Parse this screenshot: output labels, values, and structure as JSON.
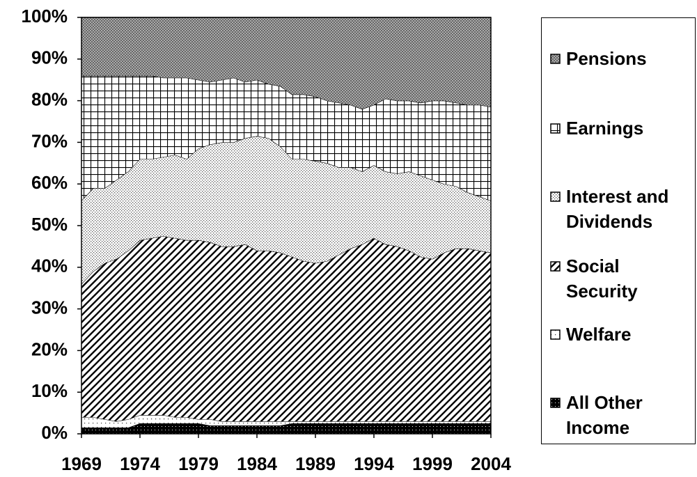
{
  "chart_data": {
    "type": "stacked-area-percent",
    "x": [
      1969,
      1970,
      1971,
      1972,
      1973,
      1974,
      1975,
      1976,
      1977,
      1978,
      1979,
      1980,
      1981,
      1982,
      1983,
      1984,
      1985,
      1986,
      1987,
      1988,
      1989,
      1990,
      1991,
      1992,
      1993,
      1994,
      1995,
      1996,
      1997,
      1998,
      1999,
      2000,
      2001,
      2002,
      2003,
      2004
    ],
    "xlim": [
      1969,
      2004
    ],
    "xticks": [
      1969,
      1974,
      1979,
      1984,
      1989,
      1994,
      1999,
      2004
    ],
    "ylim": [
      0,
      100
    ],
    "yticks": [
      {
        "value": 0,
        "label": "0%"
      },
      {
        "value": 10,
        "label": "10%"
      },
      {
        "value": 20,
        "label": "20%"
      },
      {
        "value": 30,
        "label": "30%"
      },
      {
        "value": 40,
        "label": "40%"
      },
      {
        "value": 50,
        "label": "50%"
      },
      {
        "value": 60,
        "label": "60%"
      },
      {
        "value": 70,
        "label": "70%"
      },
      {
        "value": 80,
        "label": "80%"
      },
      {
        "value": 90,
        "label": "90%"
      },
      {
        "value": 100,
        "label": "100%"
      }
    ],
    "series": [
      {
        "name": "All Other Income",
        "pattern": "black-dots",
        "values": [
          1.5,
          1.5,
          1.5,
          1.5,
          1.5,
          2.5,
          2.5,
          2.5,
          2.5,
          2.5,
          2.5,
          2,
          2,
          2,
          2,
          2,
          2,
          2,
          2.5,
          2.5,
          2.5,
          2.5,
          2.5,
          2.5,
          2.5,
          2.5,
          2.5,
          2.5,
          2.5,
          2.5,
          2.5,
          2.5,
          2.5,
          2.5,
          2.5,
          2.5
        ]
      },
      {
        "name": "Welfare",
        "pattern": "sparse-dots",
        "values": [
          2.5,
          2.5,
          2,
          1.5,
          2,
          2,
          2,
          2,
          1.5,
          1.5,
          1,
          1.5,
          1,
          1,
          1,
          1,
          1,
          1,
          0.5,
          0.5,
          0.5,
          0.5,
          0.5,
          0.5,
          0.5,
          0.5,
          0.5,
          0.5,
          0.5,
          0.5,
          0.5,
          0.5,
          0.5,
          0.5,
          0.5,
          0.5
        ]
      },
      {
        "name": "Social Security",
        "pattern": "stripes",
        "values": [
          32,
          35,
          37.5,
          39,
          40.5,
          42,
          42.5,
          43,
          43,
          42.5,
          43,
          42.5,
          42,
          42,
          42.5,
          41,
          41,
          40.5,
          39.5,
          38.5,
          38,
          38.5,
          40,
          41.5,
          42.5,
          44,
          42.5,
          42,
          41,
          39.5,
          39,
          40.5,
          41.5,
          41.5,
          41,
          40.5
        ]
      },
      {
        "name": "Interest and Dividends",
        "pattern": "dots",
        "values": [
          20,
          20,
          18,
          19,
          19,
          19.5,
          19,
          19,
          20,
          19.5,
          22,
          23.5,
          25,
          25,
          25.5,
          27.5,
          27,
          25.5,
          23.5,
          24.5,
          24.5,
          23.5,
          21,
          19.5,
          17.5,
          17.5,
          17.5,
          17.5,
          19,
          19.5,
          19,
          16.5,
          15,
          13.5,
          13,
          12.5
        ]
      },
      {
        "name": "Earnings",
        "pattern": "grid",
        "values": [
          30,
          27,
          27,
          25,
          23,
          20,
          20,
          19,
          18.5,
          19.5,
          16.5,
          15,
          15,
          15.5,
          13.5,
          13.5,
          13,
          14.5,
          15.5,
          15.5,
          15.5,
          15,
          15.5,
          15,
          15,
          14.5,
          17.5,
          17.5,
          17,
          17.5,
          19,
          20,
          20,
          21,
          22,
          22.5
        ]
      },
      {
        "name": "Pensions",
        "pattern": "crosshatch",
        "values": [
          14,
          14,
          14,
          14,
          14,
          14,
          14,
          14.5,
          14.5,
          14.5,
          15,
          15.5,
          15,
          14.5,
          15.5,
          15,
          16,
          16.5,
          18.5,
          18.5,
          19,
          20,
          20.5,
          21,
          22,
          21,
          19.5,
          20,
          20,
          20.5,
          20,
          20,
          20.5,
          21,
          21,
          21.5
        ]
      }
    ]
  }
}
